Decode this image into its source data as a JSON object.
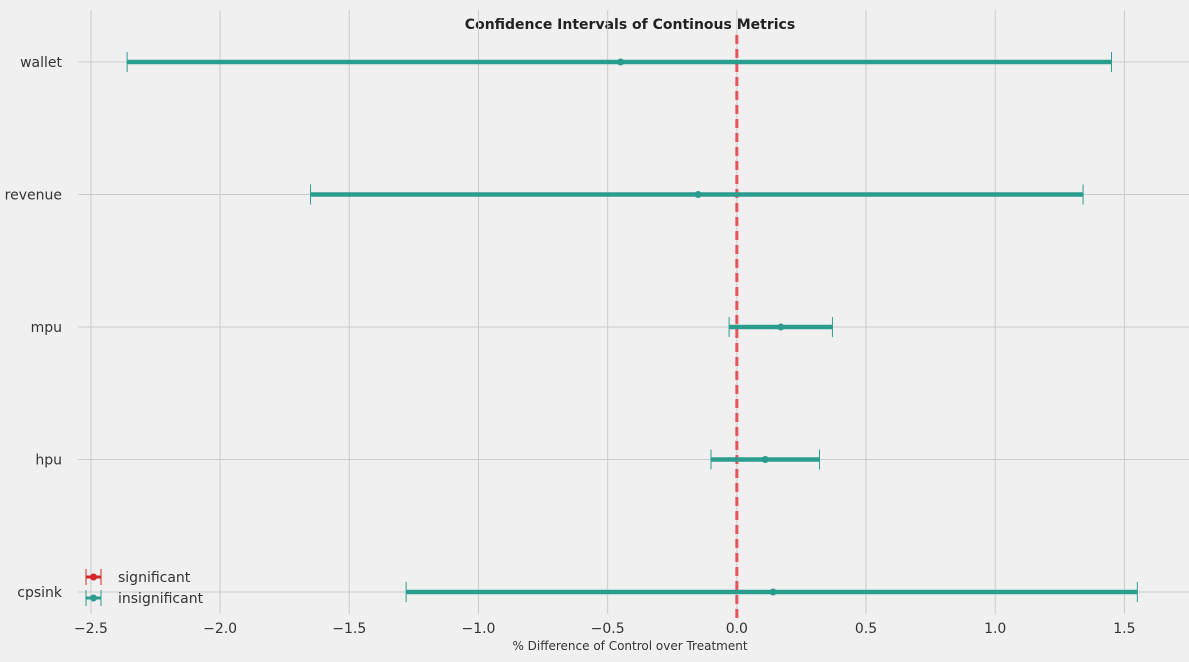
{
  "chart_data": {
    "type": "errorbar",
    "title": "Confidence Intervals of Continous Metrics",
    "xlabel": "% Difference of Control over Treatment",
    "ylabel": "",
    "xlim": [
      -2.55,
      1.75
    ],
    "x_ticks": [
      -2.5,
      -2.0,
      -1.5,
      -1.0,
      -0.5,
      0.0,
      0.5,
      1.0,
      1.5
    ],
    "x_tick_labels": [
      "−2.5",
      "−2.0",
      "−1.5",
      "−1.0",
      "−0.5",
      "0.0",
      "0.5",
      "1.0",
      "1.5"
    ],
    "grid": true,
    "reference_line": {
      "x": 0.0,
      "style": "dashed",
      "color": "#e8545a"
    },
    "metrics": [
      {
        "name": "wallet",
        "low": -2.36,
        "estimate": -0.45,
        "high": 1.45,
        "status": "insignificant"
      },
      {
        "name": "revenue",
        "low": -1.65,
        "estimate": -0.15,
        "high": 1.34,
        "status": "insignificant"
      },
      {
        "name": "mpu",
        "low": -0.03,
        "estimate": 0.17,
        "high": 0.37,
        "status": "insignificant"
      },
      {
        "name": "hpu",
        "low": -0.1,
        "estimate": 0.11,
        "high": 0.32,
        "status": "insignificant"
      },
      {
        "name": "cpsink",
        "low": -1.28,
        "estimate": 0.14,
        "high": 1.55,
        "status": "insignificant"
      }
    ],
    "legend": {
      "placement": "bottom-left",
      "entries": [
        {
          "label": "significant",
          "color": "#d62728"
        },
        {
          "label": "insignificant",
          "color": "#2a9d8f"
        }
      ]
    },
    "colors": {
      "significant": "#d62728",
      "insignificant": "#2a9d8f",
      "background": "#f0f0f0",
      "grid": "#cbcbcb"
    }
  }
}
